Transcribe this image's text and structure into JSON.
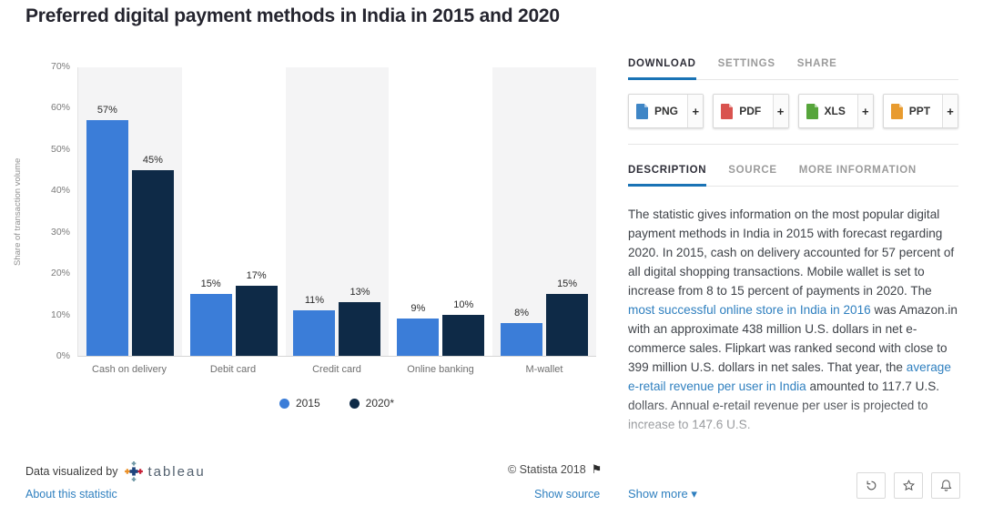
{
  "title": "Preferred digital payment methods in India in 2015 and 2020",
  "chart_data": {
    "type": "bar",
    "categories": [
      "Cash on delivery",
      "Debit card",
      "Credit card",
      "Online banking",
      "M-wallet"
    ],
    "series": [
      {
        "name": "2015",
        "color": "#3b7dd8",
        "values": [
          57,
          15,
          11,
          9,
          8
        ]
      },
      {
        "name": "2020*",
        "color": "#0e2a47",
        "values": [
          45,
          17,
          13,
          10,
          15
        ]
      }
    ],
    "ylabel": "Share of transaction volume",
    "ylim": [
      0,
      70
    ],
    "yticks": [
      "0%",
      "10%",
      "20%",
      "30%",
      "40%",
      "50%",
      "60%",
      "70%"
    ],
    "data_label_suffix": "%",
    "grid": false,
    "legend_position": "bottom"
  },
  "footer": {
    "visualized_by": "Data visualized by",
    "tableau_logo": "tableau",
    "copyright": "© Statista 2018",
    "flag_icon": "⚑",
    "about_link": "About this statistic",
    "show_source_link": "Show source"
  },
  "panel": {
    "top_tabs": [
      {
        "label": "DOWNLOAD",
        "active": true
      },
      {
        "label": "SETTINGS",
        "active": false
      },
      {
        "label": "SHARE",
        "active": false
      }
    ],
    "downloads": [
      {
        "label": "PNG",
        "plus": "+",
        "color": "#3f86c6"
      },
      {
        "label": "PDF",
        "plus": "+",
        "color": "#d9534f"
      },
      {
        "label": "XLS",
        "plus": "+",
        "color": "#56a53b"
      },
      {
        "label": "PPT",
        "plus": "+",
        "color": "#e89b2f"
      }
    ],
    "info_tabs": [
      {
        "label": "DESCRIPTION",
        "active": true
      },
      {
        "label": "SOURCE",
        "active": false
      },
      {
        "label": "MORE INFORMATION",
        "active": false
      }
    ],
    "description_segments": [
      {
        "text": "The statistic gives information on the most popular digital payment methods in India in 2015 with forecast regarding 2020. In 2015, cash on delivery accounted for 57 percent of all digital shopping transactions. Mobile wallet is set to increase from 8 to 15 percent of payments in 2020. The ",
        "link": false
      },
      {
        "text": "most successful online store in India in 2016",
        "link": true
      },
      {
        "text": " was Amazon.in with an approximate 438 million U.S. dollars in net e-commerce sales. Flipkart was ranked second with close to 399 million U.S. dollars in net sales. That year, the ",
        "link": false
      },
      {
        "text": "average e-retail revenue per user in India",
        "link": true
      },
      {
        "text": " amounted to 117.7 U.S. dollars. Annual e-retail revenue per user is projected to increase to 147.6 U.S.",
        "link": false
      }
    ],
    "show_more": "Show more",
    "show_more_caret": "▾"
  },
  "colors": {
    "accent_blue": "#1a73b5",
    "link_blue": "#2e7fbf",
    "series_2015": "#3b7dd8",
    "series_2020": "#0e2a47"
  }
}
